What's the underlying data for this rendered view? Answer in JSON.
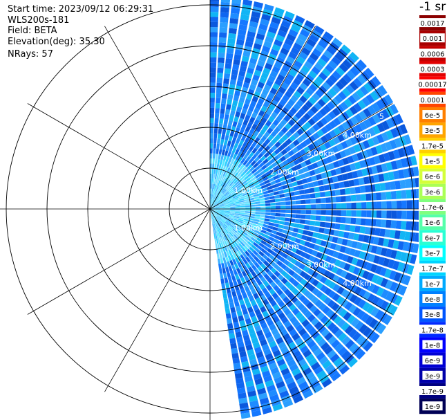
{
  "info": {
    "start_time": "Start time: 2023/09/12 06:29:31",
    "instrument": "WLS200s-181",
    "field": "Field: BETA",
    "elevation": "Elevation(deg): 35.30",
    "nrays": "NRays: 57"
  },
  "colorbar": {
    "unit_label": "-1 sr",
    "entries": [
      {
        "label": "0.0017",
        "color": "#8b0000"
      },
      {
        "label": "0.001",
        "color": "#a80000"
      },
      {
        "label": "0.0006",
        "color": "#c40000"
      },
      {
        "label": "0.0003",
        "color": "#e20000"
      },
      {
        "label": "0.00017",
        "color": "#ff0000"
      },
      {
        "label": "0.0001",
        "color": "#ff4500"
      },
      {
        "label": "6e-5",
        "color": "#ff7f00"
      },
      {
        "label": "3e-5",
        "color": "#ffa500"
      },
      {
        "label": "1.7e-5",
        "color": "#ffd000"
      },
      {
        "label": "1e-5",
        "color": "#ffff00"
      },
      {
        "label": "6e-6",
        "color": "#d4ff3a"
      },
      {
        "label": "3e-6",
        "color": "#aaff55"
      },
      {
        "label": "1.7e-6",
        "color": "#7fff7f"
      },
      {
        "label": "1e-6",
        "color": "#55ffaa"
      },
      {
        "label": "6e-7",
        "color": "#2affd4"
      },
      {
        "label": "3e-7",
        "color": "#00ffff"
      },
      {
        "label": "1.7e-7",
        "color": "#00d4ff"
      },
      {
        "label": "1e-7",
        "color": "#00aaff"
      },
      {
        "label": "6e-8",
        "color": "#0080ff"
      },
      {
        "label": "3e-8",
        "color": "#0055ff"
      },
      {
        "label": "1.7e-8",
        "color": "#002aff"
      },
      {
        "label": "1e-8",
        "color": "#0000ff"
      },
      {
        "label": "6e-9",
        "color": "#0000d4"
      },
      {
        "label": "3e-9",
        "color": "#0000aa"
      },
      {
        "label": "1.7e-9",
        "color": "#00007f"
      },
      {
        "label": "1e-9",
        "color": "#000055"
      }
    ]
  },
  "chart_data": {
    "type": "polar_sector",
    "field": "BETA",
    "nrays": 57,
    "azimuth_range_deg": [
      0,
      172
    ],
    "ring_labels": [
      "1.00km",
      "2.00km",
      "3.00km",
      "4.00km",
      "5"
    ],
    "ring_distances_km": [
      1,
      2,
      3,
      4,
      5
    ],
    "max_range_km": 5.2,
    "colors": {
      "near": [
        "#2fd0ff",
        "#56e6ff",
        "#3fb2ff",
        "#6fdcff"
      ],
      "far": [
        "#1578ff",
        "#1e8cff",
        "#0f66f0",
        "#2a9fff",
        "#11b5f5",
        "#0a58dd"
      ]
    }
  }
}
